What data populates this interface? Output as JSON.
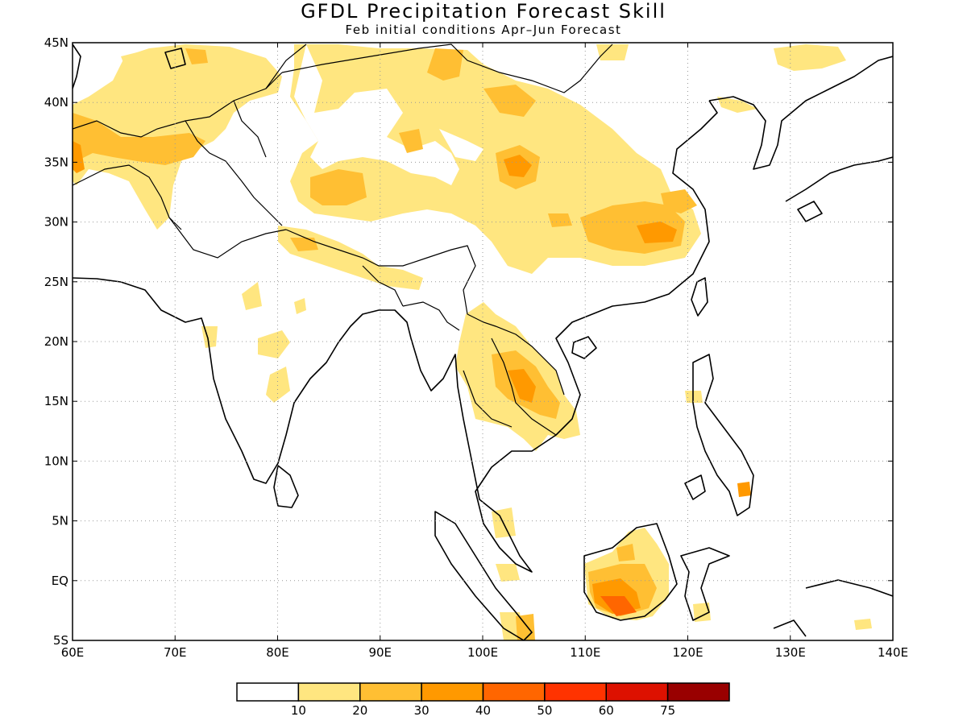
{
  "title": "GFDL Precipitation Forecast Skill",
  "subtitle": "Feb initial conditions  Apr–Jun Forecast",
  "map": {
    "lon_range": [
      60,
      140
    ],
    "lat_range": [
      -5,
      45
    ],
    "lon_ticks": [
      "60E",
      "70E",
      "80E",
      "90E",
      "100E",
      "110E",
      "120E",
      "130E",
      "140E"
    ],
    "lat_ticks": [
      "45N",
      "40N",
      "35N",
      "30N",
      "25N",
      "20N",
      "15N",
      "10N",
      "5N",
      "EQ",
      "5S"
    ],
    "gridlines": "dotted"
  },
  "colorbar": {
    "colors": [
      "#ffffff",
      "#ffe680",
      "#ffbf33",
      "#ff9900",
      "#ff6600",
      "#ff3300",
      "#dd1100",
      "#990000"
    ],
    "labels": [
      "10",
      "20",
      "30",
      "40",
      "50",
      "60",
      "75"
    ]
  }
}
